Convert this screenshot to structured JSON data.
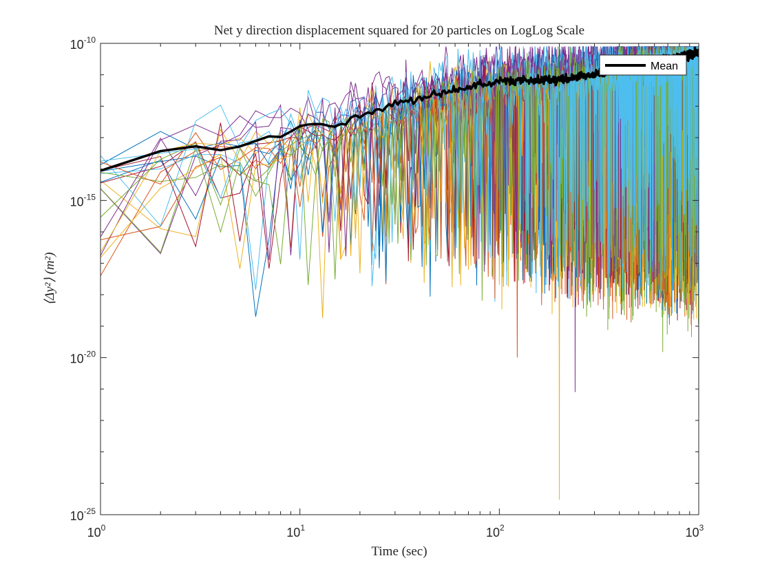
{
  "chart_data": {
    "type": "line",
    "title": "Net y direction displacement squared for 20 particles on LogLog Scale",
    "xlabel": "Time (sec)",
    "ylabel": "⟨Δy²⟩ (m²)",
    "xscale": "log",
    "yscale": "log",
    "xlim": [
      1,
      1000
    ],
    "ylim": [
      1e-25,
      1e-10
    ],
    "x_ticks": [
      {
        "base": "10",
        "exp": "0",
        "value": 1
      },
      {
        "base": "10",
        "exp": "1",
        "value": 10
      },
      {
        "base": "10",
        "exp": "2",
        "value": 100
      },
      {
        "base": "10",
        "exp": "3",
        "value": 1000
      }
    ],
    "y_ticks": [
      {
        "base": "10",
        "exp": "-25",
        "value": 1e-25
      },
      {
        "base": "10",
        "exp": "-20",
        "value": 1e-20
      },
      {
        "base": "10",
        "exp": "-15",
        "value": 1e-15
      },
      {
        "base": "10",
        "exp": "-10",
        "value": 1e-10
      }
    ],
    "grid": false,
    "box": true,
    "legend": {
      "position": "top-right",
      "entries": [
        "Mean"
      ]
    },
    "particle_count": 20,
    "particle_colors": [
      "#0072BD",
      "#D95319",
      "#EDB120",
      "#7E2F8E",
      "#77AC30",
      "#4DBEEE",
      "#A2142F"
    ],
    "mean": {
      "name": "Mean",
      "color": "#000000",
      "points": [
        [
          1,
          1e-14
        ],
        [
          2,
          3e-14
        ],
        [
          3,
          5e-14
        ],
        [
          4,
          5e-14
        ],
        [
          5,
          6e-14
        ],
        [
          6,
          8e-14
        ],
        [
          8,
          1.2e-13
        ],
        [
          10,
          2e-13
        ],
        [
          15,
          3e-13
        ],
        [
          20,
          5e-13
        ],
        [
          30,
          1.2e-12
        ],
        [
          50,
          2.5e-12
        ],
        [
          70,
          4e-12
        ],
        [
          100,
          6e-12
        ],
        [
          150,
          7e-12
        ],
        [
          200,
          7e-12
        ],
        [
          300,
          1e-11
        ],
        [
          500,
          2e-11
        ],
        [
          700,
          3e-11
        ],
        [
          1000,
          5e-11
        ]
      ]
    },
    "annotation_minima": [
      {
        "x": 6,
        "y": 2e-19
      },
      {
        "x": 123,
        "y": 1e-20
      },
      {
        "x": 200,
        "y": 3e-25
      },
      {
        "x": 240,
        "y": 8e-22
      },
      {
        "x": 660,
        "y": 1.5e-20
      }
    ]
  }
}
